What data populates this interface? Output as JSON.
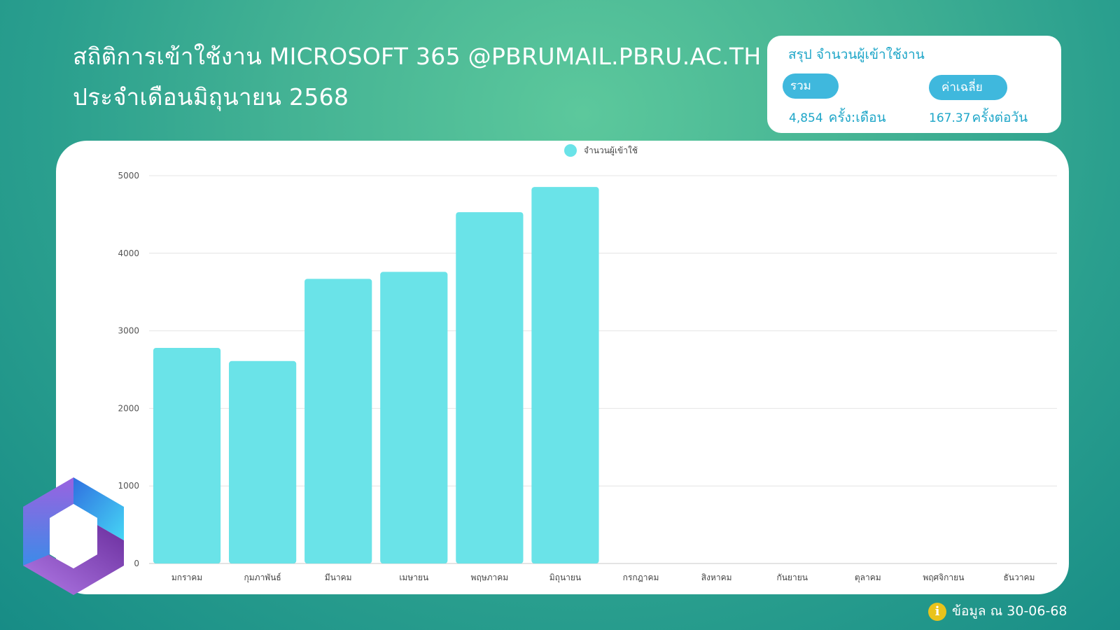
{
  "header": {
    "title_line1": "สถิติการเข้าใช้งาน MICROSOFT 365 @PBRUMAIL.PBRU.AC.TH",
    "title_line2": "ประจำเดือนมิถุนายน 2568"
  },
  "summary": {
    "title": "สรุป จำนวนผู้เข้าใช้งาน",
    "total_label": "รวม",
    "total_value": "4,854",
    "total_unit": "ครั้ง:เดือน",
    "avg_label": "ค่าเฉลี่ย",
    "avg_value": "167.37",
    "avg_unit": "ครั้งต่อวัน"
  },
  "footer": {
    "note": "ข้อมูล ณ 30-06-68",
    "icon": "info-icon"
  },
  "colors": {
    "bar": "#6ae3e8",
    "accent": "#1ea6c8",
    "pill": "#3fb8dd"
  },
  "chart_data": {
    "type": "bar",
    "categories": [
      "มกราคม",
      "กุมภาพันธ์",
      "มีนาคม",
      "เมษายน",
      "พฤษภาคม",
      "มิถุนายน",
      "กรกฎาคม",
      "สิงหาคม",
      "กันยายน",
      "ตุลาคม",
      "พฤศจิกายน",
      "ธันวาคม"
    ],
    "series": [
      {
        "name": "จำนวนผู้เข้าใช้",
        "values": [
          2780,
          2610,
          3670,
          3760,
          4530,
          4854,
          null,
          null,
          null,
          null,
          null,
          null
        ]
      }
    ],
    "ylim": [
      0,
      5000
    ],
    "yticks": [
      0,
      1000,
      2000,
      3000,
      4000,
      5000
    ],
    "grid": true,
    "legend_position": "top-center"
  }
}
